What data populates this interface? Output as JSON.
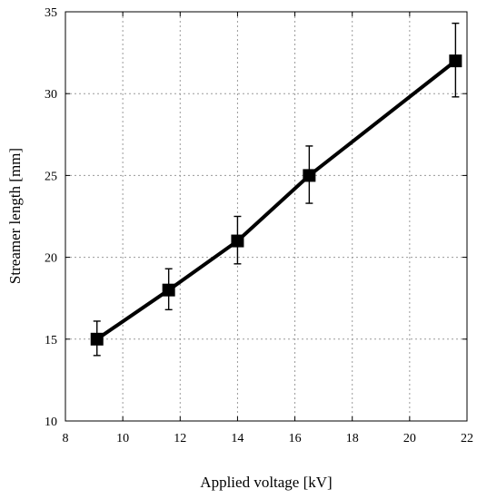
{
  "chart_data": {
    "type": "line",
    "title": "",
    "xlabel": "Applied voltage [kV]",
    "ylabel": "Streamer length [mm]",
    "xlim": [
      8,
      22
    ],
    "ylim": [
      10,
      35
    ],
    "xticks": [
      8,
      10,
      12,
      14,
      16,
      18,
      20,
      22
    ],
    "yticks": [
      10,
      15,
      20,
      25,
      30,
      35
    ],
    "grid": true,
    "legend": "none",
    "series": [
      {
        "x": [
          9.1,
          11.6,
          14.0,
          16.5,
          21.6
        ],
        "y": [
          15.0,
          18.0,
          21.0,
          25.0,
          32.0
        ],
        "err_low": [
          1.0,
          1.2,
          1.4,
          1.7,
          2.2
        ],
        "err_high": [
          1.1,
          1.3,
          1.5,
          1.8,
          2.3
        ],
        "marker": "square",
        "color": "#000000"
      }
    ]
  }
}
